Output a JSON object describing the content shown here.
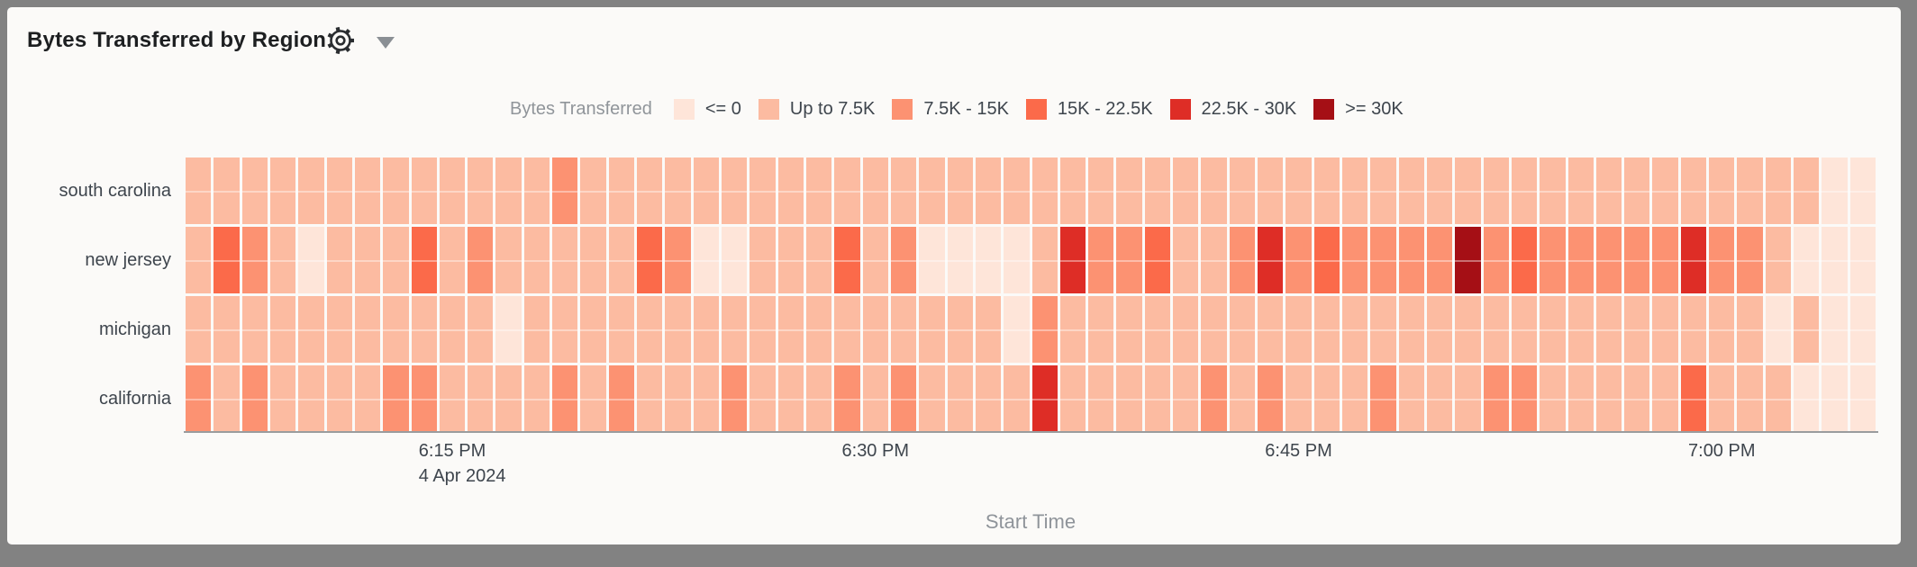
{
  "panel": {
    "title": "Bytes Transferred by Region"
  },
  "chart_data": {
    "type": "heatmap",
    "title": "Bytes Transferred by Region",
    "legend_title": "Bytes Transferred",
    "bins": [
      {
        "label": "<= 0",
        "color": "#FEE5D9"
      },
      {
        "label": "Up to 7.5K",
        "color": "#FCBBA1"
      },
      {
        "label": "7.5K - 15K",
        "color": "#FC9272"
      },
      {
        "label": "15K - 22.5K",
        "color": "#FB6A4A"
      },
      {
        "label": "22.5K - 30K",
        "color": "#DE2D26"
      },
      {
        "label": ">= 30K",
        "color": "#A50F15"
      }
    ],
    "xlabel": "Start Time",
    "columns": 60,
    "x_ticks": [
      {
        "col": 9,
        "label": "6:15 PM",
        "sublabel": "4 Apr 2024"
      },
      {
        "col": 24,
        "label": "6:30 PM"
      },
      {
        "col": 39,
        "label": "6:45 PM"
      },
      {
        "col": 54,
        "label": "7:00 PM"
      }
    ],
    "rows": [
      {
        "label": "south carolina",
        "values": [
          1,
          1,
          1,
          1,
          1,
          1,
          1,
          1,
          1,
          1,
          1,
          1,
          1,
          2,
          1,
          1,
          1,
          1,
          1,
          1,
          1,
          1,
          1,
          1,
          1,
          1,
          1,
          1,
          1,
          1,
          1,
          1,
          1,
          1,
          1,
          1,
          1,
          1,
          1,
          1,
          1,
          1,
          1,
          1,
          1,
          1,
          1,
          1,
          1,
          1,
          1,
          1,
          1,
          1,
          1,
          1,
          1,
          1,
          0,
          0
        ]
      },
      {
        "label": "new jersey",
        "values": [
          1,
          3,
          2,
          1,
          0,
          1,
          1,
          1,
          3,
          1,
          2,
          1,
          1,
          1,
          1,
          1,
          3,
          2,
          0,
          0,
          1,
          1,
          1,
          3,
          1,
          2,
          0,
          0,
          0,
          0,
          1,
          4,
          2,
          2,
          3,
          1,
          1,
          2,
          4,
          2,
          3,
          2,
          2,
          2,
          2,
          5,
          2,
          3,
          2,
          2,
          2,
          2,
          2,
          4,
          2,
          2,
          1,
          0,
          0,
          0
        ]
      },
      {
        "label": "michigan",
        "values": [
          1,
          1,
          1,
          1,
          1,
          1,
          1,
          1,
          1,
          1,
          1,
          0,
          1,
          1,
          1,
          1,
          1,
          1,
          1,
          1,
          1,
          1,
          1,
          1,
          1,
          1,
          1,
          1,
          1,
          0,
          2,
          1,
          1,
          1,
          1,
          1,
          1,
          1,
          1,
          1,
          1,
          1,
          1,
          1,
          1,
          1,
          1,
          1,
          1,
          1,
          1,
          1,
          1,
          1,
          1,
          1,
          0,
          1,
          0,
          0
        ]
      },
      {
        "label": "california",
        "values": [
          2,
          1,
          2,
          1,
          1,
          1,
          1,
          2,
          2,
          1,
          1,
          1,
          1,
          2,
          1,
          2,
          1,
          1,
          1,
          2,
          1,
          1,
          1,
          2,
          1,
          2,
          1,
          1,
          1,
          1,
          4,
          1,
          1,
          1,
          1,
          1,
          2,
          1,
          2,
          1,
          1,
          1,
          2,
          1,
          1,
          1,
          2,
          2,
          1,
          1,
          1,
          1,
          1,
          3,
          1,
          1,
          1,
          0,
          0,
          0
        ]
      }
    ]
  }
}
